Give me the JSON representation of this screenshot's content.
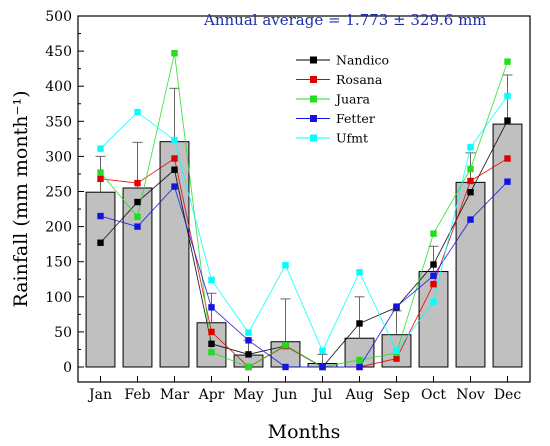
{
  "chart_data": {
    "type": "bar",
    "title": "",
    "annotation": "Annual average = 1.773 ± 329.6 mm",
    "annotation_color": "#1f2ea8",
    "xlabel": "Months",
    "ylabel": "Rainfall (mm month⁻¹)",
    "ylim": [
      0,
      500
    ],
    "yticks": [
      0,
      50,
      100,
      150,
      200,
      250,
      300,
      350,
      400,
      450,
      500
    ],
    "categories": [
      "Jan",
      "Feb",
      "Mar",
      "Apr",
      "May",
      "Jun",
      "Jul",
      "Aug",
      "Sep",
      "Oct",
      "Nov",
      "Dec"
    ],
    "bars": {
      "fill": "#c0c0c0",
      "values": [
        249,
        255,
        321,
        63,
        17,
        36,
        5,
        41,
        46,
        136,
        263,
        346
      ],
      "error_upper": [
        300,
        320,
        397,
        105,
        38,
        97,
        18,
        100,
        80,
        172,
        305,
        416
      ]
    },
    "grid": false,
    "legend_position": "top-right",
    "series": [
      {
        "name": "Nandico",
        "color": "#000000",
        "values": [
          177,
          235,
          281,
          33,
          18,
          30,
          0,
          62,
          85,
          146,
          249,
          351
        ]
      },
      {
        "name": "Rosana",
        "color": "#e00000",
        "values": [
          268,
          262,
          297,
          50,
          0,
          30,
          0,
          0,
          12,
          118,
          265,
          297
        ]
      },
      {
        "name": "Juara",
        "color": "#22dd22",
        "values": [
          277,
          214,
          447,
          21,
          0,
          31,
          0,
          10,
          20,
          190,
          282,
          435
        ]
      },
      {
        "name": "Fetter",
        "color": "#1414e0",
        "values": [
          215,
          200,
          257,
          85,
          38,
          0,
          0,
          0,
          86,
          130,
          210,
          264
        ]
      },
      {
        "name": "Ufmt",
        "color": "#00ffff",
        "values": [
          311,
          363,
          323,
          124,
          49,
          145,
          23,
          135,
          23,
          93,
          313,
          386
        ]
      }
    ]
  }
}
